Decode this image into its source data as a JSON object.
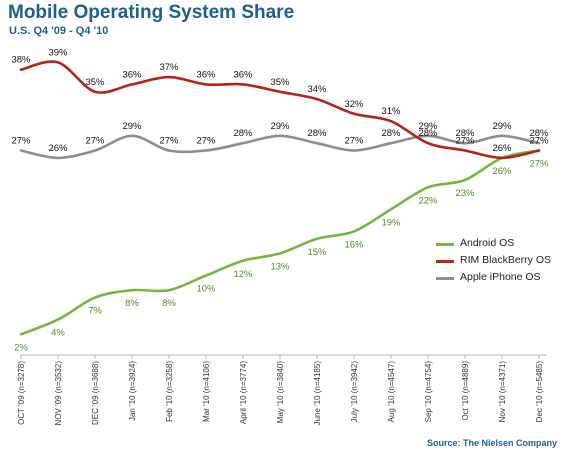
{
  "title": "Mobile Operating System Share",
  "subtitle": "U.S. Q4 '09 - Q4 '10",
  "source": "Source: The Nielsen Company",
  "chart_data": {
    "type": "line",
    "title": "Mobile Operating System Share",
    "subtitle": "U.S. Q4 '09 - Q4 '10",
    "xlabel": "",
    "ylabel": "",
    "ylim": [
      0,
      40
    ],
    "grid": false,
    "legend": "right",
    "categories": [
      "OCT '09 (n=3278)",
      "NOV '09 (n=3532)",
      "DEC '09 (n=3688)",
      "Jan '10 (n=3924)",
      "Feb '10 (n=3258)",
      "Mar '10 (n=4106)",
      "April '10 (n=3774)",
      "May '10 (n=3840)",
      "June '10 (n=4185)",
      "July '10 (n=3942)",
      "Aug '10 (n=4547)",
      "Sep '10 (n=4754)",
      "Oct '10 (n=4889)",
      "Nov '10 (n=4371)",
      "Dec '10 (n=5485)"
    ],
    "series": [
      {
        "name": "Android OS",
        "color": "#76b63f",
        "label_color": "#4f8a28",
        "values": [
          2,
          4,
          7,
          8,
          8,
          10,
          12,
          13,
          15,
          16,
          19,
          22,
          23,
          26,
          27
        ],
        "labels": [
          "2%",
          "4%",
          "7%",
          "8%",
          "8%",
          "10%",
          "12%",
          "13%",
          "15%",
          "16%",
          "19%",
          "22%",
          "23%",
          "26%",
          "27%"
        ],
        "label_pos": "below"
      },
      {
        "name": "RIM BlackBerry OS",
        "color": "#b22418",
        "label_color": "#111111",
        "values": [
          38,
          39,
          35,
          36,
          37,
          36,
          36,
          35,
          34,
          32,
          31,
          28,
          27,
          26,
          27
        ],
        "labels": [
          "38%",
          "39%",
          "35%",
          "36%",
          "37%",
          "36%",
          "36%",
          "35%",
          "34%",
          "32%",
          "31%",
          "28%",
          "27%",
          "26%",
          "27%"
        ],
        "label_pos": "above"
      },
      {
        "name": "Apple iPhone OS",
        "color": "#8d8d8d",
        "label_color": "#111111",
        "values": [
          27,
          26,
          27,
          29,
          27,
          27,
          28,
          29,
          28,
          27,
          28,
          29,
          28,
          29,
          28
        ],
        "labels": [
          "27%",
          "26%",
          "27%",
          "29%",
          "27%",
          "27%",
          "28%",
          "29%",
          "28%",
          "27%",
          "28%",
          "29%",
          "28%",
          "29%",
          "28%"
        ],
        "label_pos": "above"
      }
    ]
  }
}
